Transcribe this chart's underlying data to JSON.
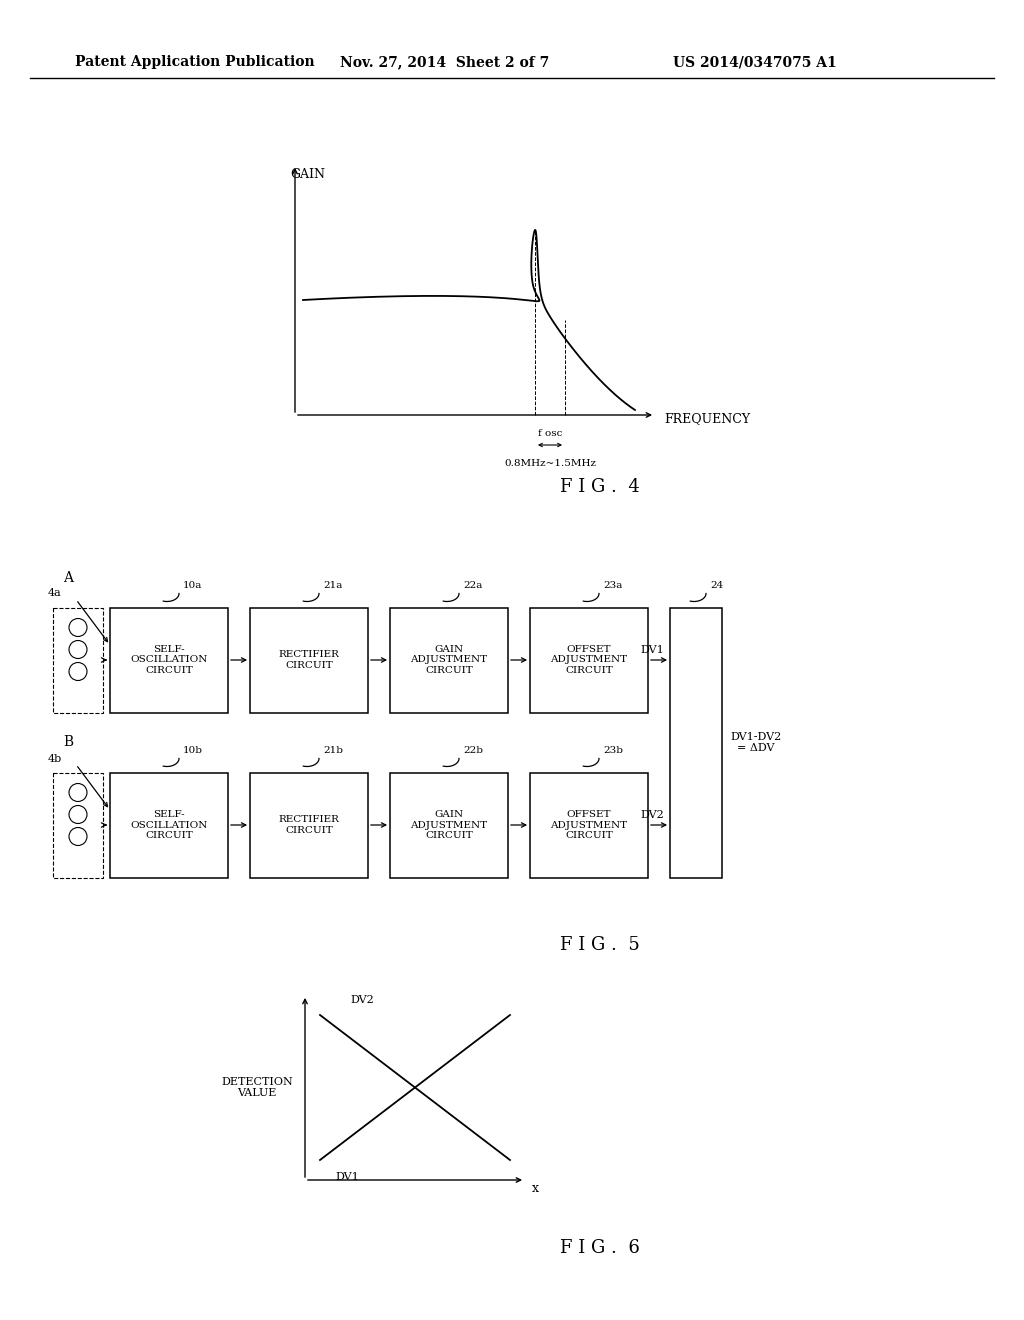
{
  "bg_color": "#ffffff",
  "header_text1": "Patent Application Publication",
  "header_text2": "Nov. 27, 2014  Sheet 2 of 7",
  "header_text3": "US 2014/0347075 A1",
  "fig4_label": "F I G .  4",
  "fig5_label": "F I G .  5",
  "fig6_label": "F I G .  6",
  "gain_label": "GAIN",
  "freq_label": "FREQUENCY",
  "freq_range_label": "0.8MHz~1.5MHz",
  "fosc_label": "f osc",
  "detection_label": "DETECTION\nVALUE",
  "dv1_label": "DV1",
  "dv2_label": "DV2",
  "x_label": "x",
  "box_labels_top": [
    "SELF-\nOSCILLATION\nCIRCUIT",
    "RECTIFIER\nCIRCUIT",
    "GAIN\nADJUSTMENT\nCIRCUIT",
    "OFFSET\nADJUSTMENT\nCIRCUIT"
  ],
  "box_labels_bot": [
    "SELF-\nOSCILLATION\nCIRCUIT",
    "RECTIFIER\nCIRCUIT",
    "GAIN\nADJUSTMENT\nCIRCUIT",
    "OFFSET\nADJUSTMENT\nCIRCUIT"
  ],
  "ref_top": [
    "10a",
    "21a",
    "22a",
    "23a"
  ],
  "ref_bot": [
    "10b",
    "21b",
    "22b",
    "23b"
  ],
  "ref_24": "24",
  "label_A": "A",
  "label_B": "B",
  "label_4a": "4a",
  "label_4b": "4b",
  "label_DV1": "DV1",
  "label_DV2": "DV2",
  "label_diff": "DV1-DV2\n= ΔDV"
}
